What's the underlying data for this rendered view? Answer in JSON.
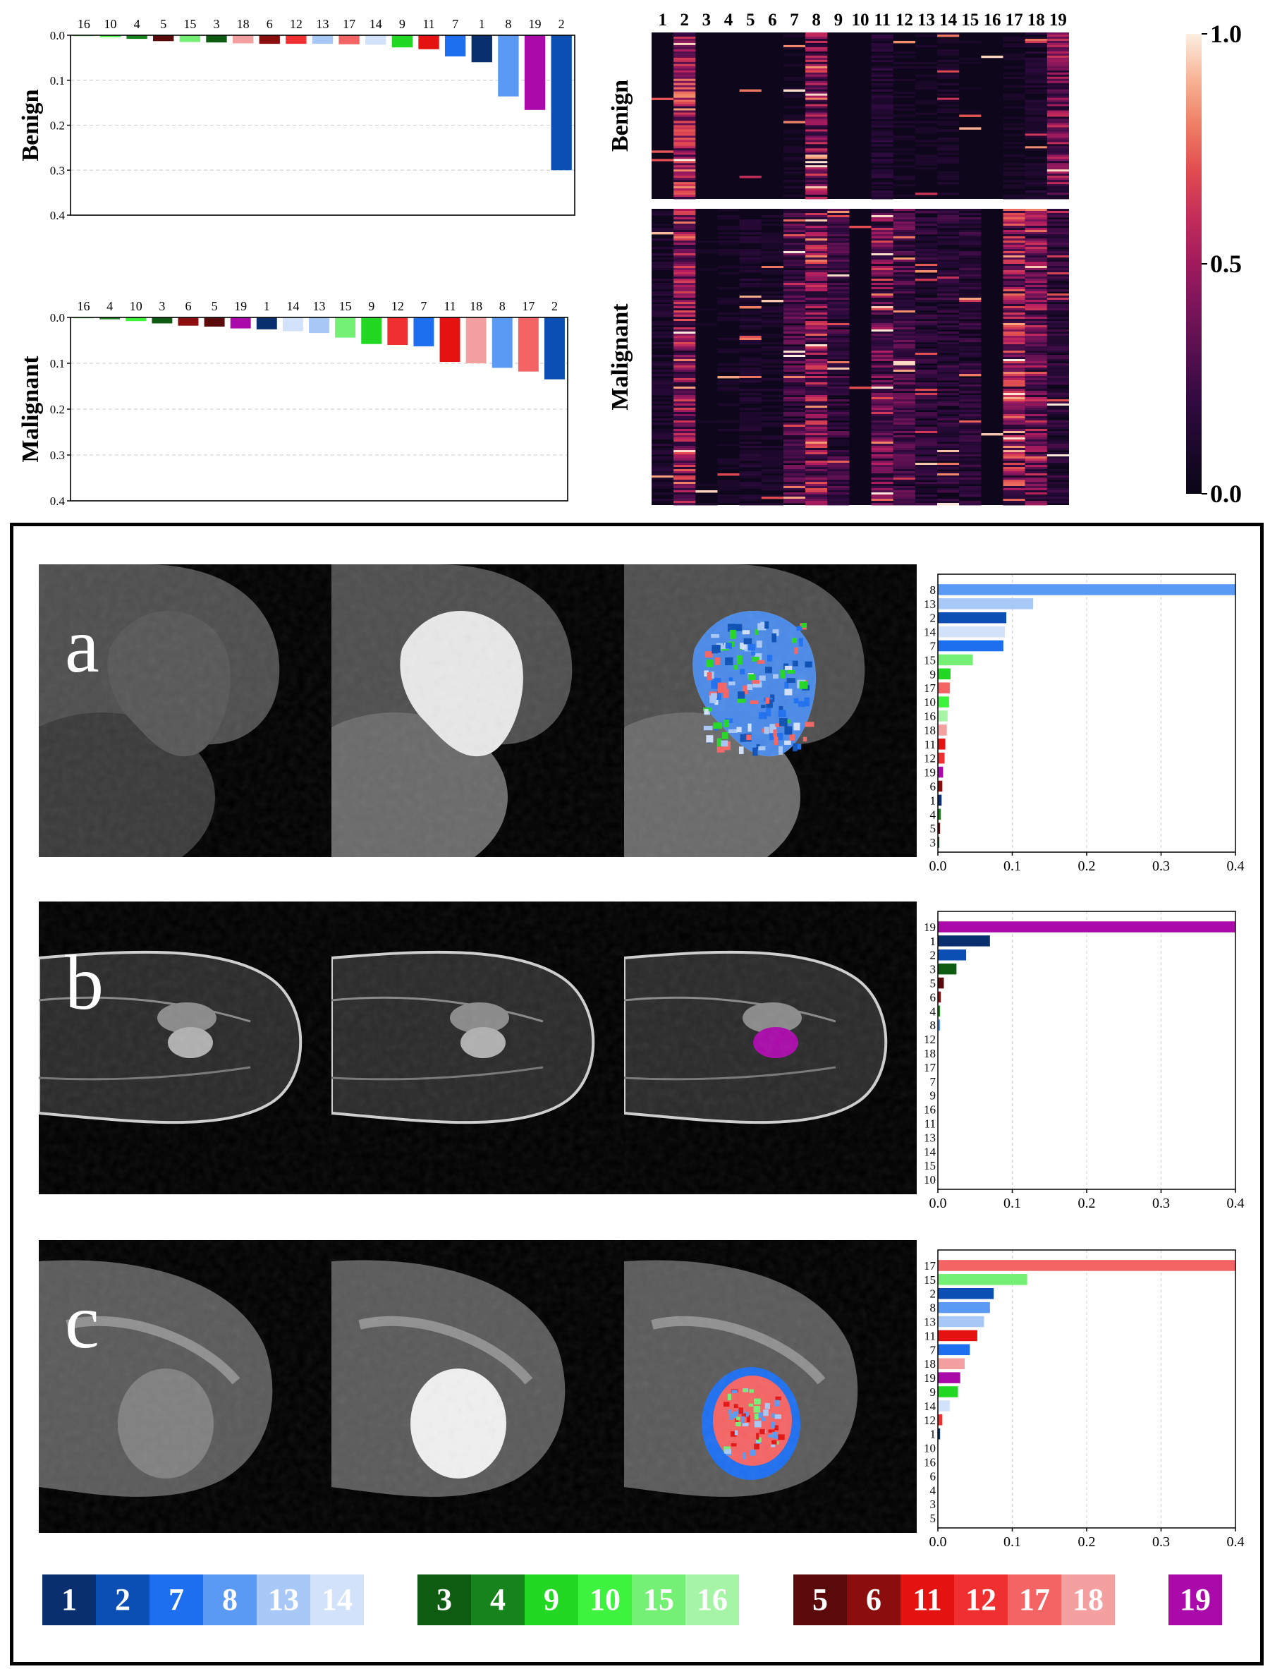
{
  "cluster_colors": {
    "1": "#0a2f6e",
    "2": "#0b4fb5",
    "7": "#1e6ff0",
    "8": "#5a9af4",
    "13": "#a8c8f8",
    "14": "#d2e2fb",
    "3": "#0e5c12",
    "4": "#17831c",
    "9": "#22d822",
    "10": "#3ef33e",
    "15": "#74f074",
    "16": "#a6f5a6",
    "5": "#5a0a0a",
    "6": "#8c0d0d",
    "11": "#e51212",
    "12": "#f03030",
    "17": "#f56464",
    "18": "#f5a0a0",
    "19": "#a90aa9"
  },
  "top_bars": [
    {
      "row_label": "Benign",
      "categories": [
        "16",
        "10",
        "4",
        "5",
        "15",
        "3",
        "18",
        "6",
        "12",
        "13",
        "17",
        "14",
        "9",
        "11",
        "7",
        "1",
        "8",
        "19",
        "2"
      ],
      "values": [
        0.002,
        0.004,
        0.008,
        0.013,
        0.015,
        0.016,
        0.018,
        0.019,
        0.019,
        0.019,
        0.02,
        0.021,
        0.027,
        0.031,
        0.047,
        0.06,
        0.136,
        0.166,
        0.3
      ],
      "yticks": [
        "0.0",
        "0.1",
        "0.2",
        "0.3",
        "0.4"
      ],
      "ylim": [
        0,
        0.4
      ]
    },
    {
      "row_label": "Malignant",
      "categories": [
        "16",
        "4",
        "10",
        "3",
        "6",
        "5",
        "19",
        "1",
        "14",
        "13",
        "15",
        "9",
        "12",
        "7",
        "11",
        "18",
        "8",
        "17",
        "2"
      ],
      "values": [
        0.002,
        0.004,
        0.008,
        0.013,
        0.018,
        0.02,
        0.024,
        0.026,
        0.03,
        0.034,
        0.044,
        0.058,
        0.06,
        0.063,
        0.097,
        0.1,
        0.11,
        0.118,
        0.135
      ],
      "yticks": [
        "0.0",
        "0.1",
        "0.2",
        "0.3",
        "0.4"
      ],
      "ylim": [
        0,
        0.4
      ]
    }
  ],
  "heatmap": {
    "columns": [
      "1",
      "2",
      "3",
      "4",
      "5",
      "6",
      "7",
      "8",
      "9",
      "10",
      "11",
      "12",
      "13",
      "14",
      "15",
      "16",
      "17",
      "18",
      "19"
    ],
    "rows": [
      "Benign",
      "Malignant"
    ],
    "colorbar_ticks": [
      "1.0",
      "0.5",
      "0.0"
    ],
    "benign_intensity": [
      0.05,
      0.6,
      0.03,
      0.03,
      0.03,
      0.03,
      0.08,
      0.45,
      0.05,
      0.02,
      0.15,
      0.08,
      0.08,
      0.1,
      0.06,
      0.02,
      0.08,
      0.12,
      0.45
    ],
    "malignant_intensity": [
      0.12,
      0.5,
      0.06,
      0.08,
      0.12,
      0.1,
      0.3,
      0.5,
      0.25,
      0.05,
      0.4,
      0.3,
      0.2,
      0.2,
      0.2,
      0.05,
      0.55,
      0.45,
      0.2
    ]
  },
  "panels": [
    {
      "letter": "a",
      "bars": {
        "categories": [
          "8",
          "13",
          "2",
          "14",
          "7",
          "15",
          "9",
          "17",
          "10",
          "16",
          "18",
          "11",
          "12",
          "19",
          "6",
          "1",
          "4",
          "5",
          "3"
        ],
        "values": [
          0.4,
          0.128,
          0.092,
          0.09,
          0.088,
          0.047,
          0.017,
          0.016,
          0.015,
          0.013,
          0.012,
          0.01,
          0.009,
          0.007,
          0.006,
          0.005,
          0.004,
          0.003,
          0.002
        ],
        "xticks": [
          "0.0",
          "0.1",
          "0.2",
          "0.3",
          "0.4"
        ],
        "xlim": [
          0,
          0.4
        ]
      }
    },
    {
      "letter": "b",
      "bars": {
        "categories": [
          "19",
          "1",
          "2",
          "3",
          "5",
          "6",
          "4",
          "8",
          "12",
          "18",
          "17",
          "7",
          "9",
          "16",
          "11",
          "13",
          "14",
          "15",
          "10"
        ],
        "values": [
          0.4,
          0.07,
          0.038,
          0.025,
          0.008,
          0.004,
          0.003,
          0.003,
          0.0,
          0.0,
          0.0,
          0.0,
          0.0,
          0.0,
          0.0,
          0.0,
          0.0,
          0.0,
          0.0
        ],
        "xticks": [
          "0.0",
          "0.1",
          "0.2",
          "0.3",
          "0.4"
        ],
        "xlim": [
          0,
          0.4
        ]
      }
    },
    {
      "letter": "c",
      "bars": {
        "categories": [
          "17",
          "15",
          "2",
          "8",
          "13",
          "11",
          "7",
          "18",
          "19",
          "9",
          "14",
          "12",
          "1",
          "10",
          "16",
          "6",
          "4",
          "3",
          "5"
        ],
        "values": [
          0.4,
          0.12,
          0.075,
          0.07,
          0.062,
          0.053,
          0.043,
          0.036,
          0.03,
          0.027,
          0.016,
          0.006,
          0.003,
          0.0,
          0.0,
          0.0,
          0.0,
          0.0,
          0.0
        ],
        "xticks": [
          "0.0",
          "0.1",
          "0.2",
          "0.3",
          "0.4"
        ],
        "xlim": [
          0,
          0.4
        ]
      }
    }
  ],
  "legend_groups": [
    [
      "1",
      "2",
      "7",
      "8",
      "13",
      "14"
    ],
    [
      "3",
      "4",
      "9",
      "10",
      "15",
      "16"
    ],
    [
      "5",
      "6",
      "11",
      "12",
      "17",
      "18"
    ],
    [
      "19"
    ]
  ]
}
